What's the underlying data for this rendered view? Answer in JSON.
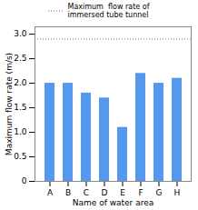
{
  "chart_data": {
    "type": "bar",
    "categories": [
      "A",
      "B",
      "C",
      "D",
      "E",
      "F",
      "G",
      "H"
    ],
    "values": [
      2.0,
      2.0,
      1.8,
      1.7,
      1.1,
      2.2,
      2.0,
      2.1
    ],
    "color": "#5599ee",
    "xlabel": "Name of water area",
    "ylabel": "Maximum flow rate (m/s)",
    "ylim": [
      0,
      3.15
    ],
    "yticks": [
      0,
      0.5,
      {
        "value": 1.0,
        "label": "1.0"
      },
      1.5,
      {
        "value": 2.0,
        "label": "2.0"
      },
      2.5,
      {
        "value": 3.0,
        "label": "3.0"
      }
    ],
    "hline": {
      "value": 2.9,
      "name": "Maximum  flow rate of\nimmersed tube tunnel",
      "color": "#6666bb",
      "line_style": "dotted"
    },
    "legend": "upper center"
  }
}
